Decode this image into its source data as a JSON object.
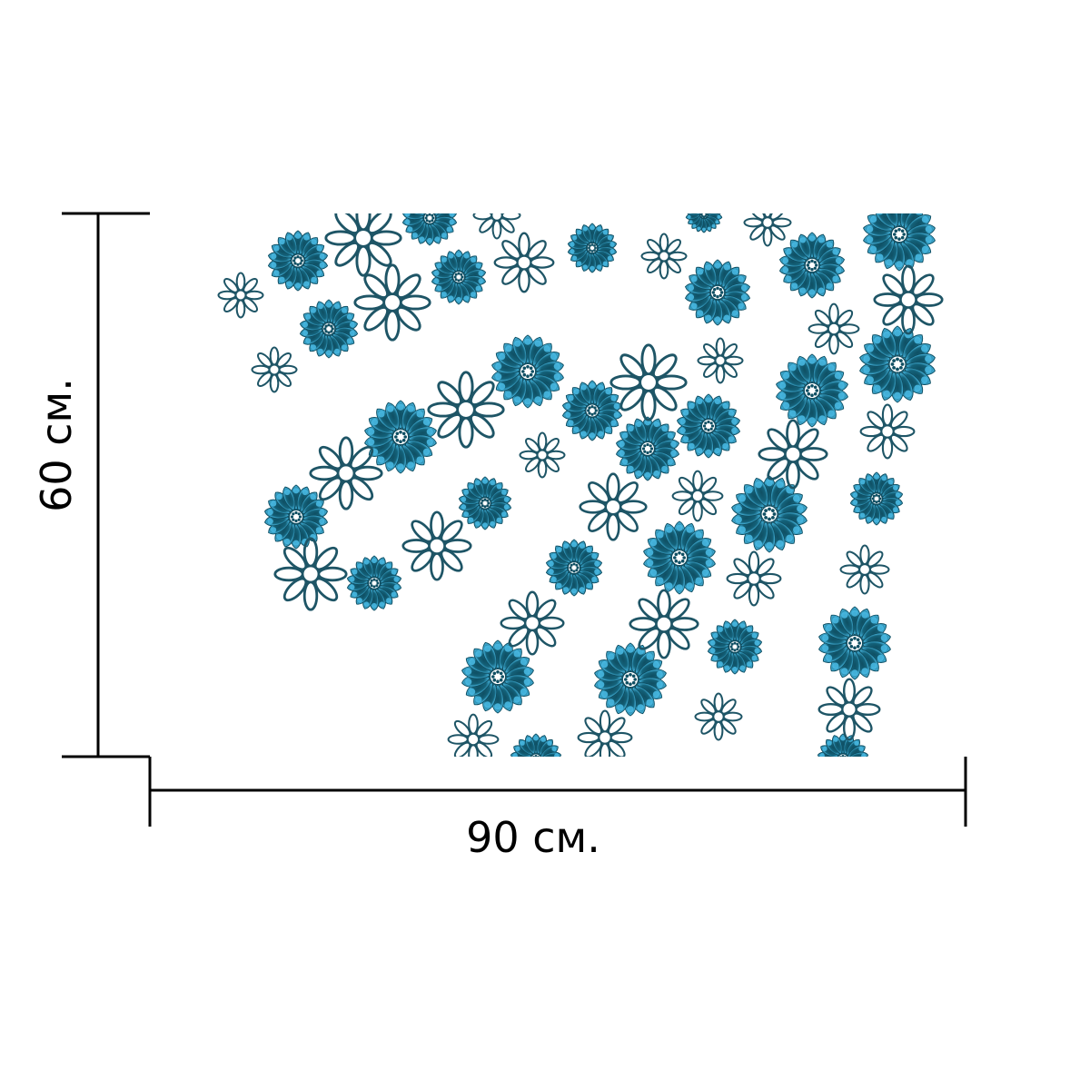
{
  "dimensions": {
    "width_label": "90 см.",
    "height_label": "60 см."
  },
  "pattern": {
    "kind": "daisy-floral-pattern",
    "colors": {
      "petal_dark": "#0f4f63",
      "petal_light": "#4fc3ef",
      "outline": "#1e5566",
      "background": "#ffffff",
      "dimension_line": "#000000"
    }
  }
}
